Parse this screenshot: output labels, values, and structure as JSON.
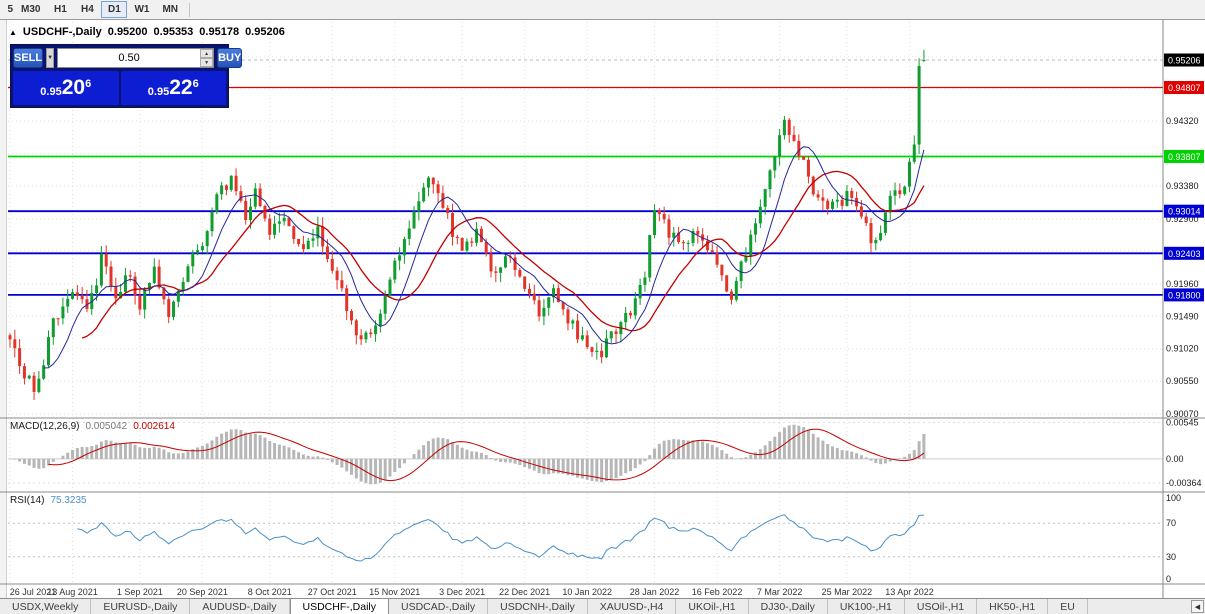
{
  "toolbar": {
    "timeframes": [
      "5",
      "M30",
      "H1",
      "H4",
      "D1",
      "W1",
      "MN"
    ],
    "active": "D1"
  },
  "chart": {
    "symbol_title": "USDCHF-,Daily",
    "ohlc": {
      "open": "0.95200",
      "high": "0.95353",
      "low": "0.95178",
      "close": "0.95206"
    },
    "trade_panel": {
      "sell_label": "SELL",
      "buy_label": "BUY",
      "lot_size": "0.50",
      "bid_small": "0.95",
      "bid_big": "20",
      "bid_sup": "6",
      "ask_small": "0.95",
      "ask_big": "22",
      "ask_sup": "6"
    },
    "price_axis": {
      "current": {
        "label": "0.95206",
        "price": 0.95206
      },
      "levels": [
        {
          "label": "0.94807",
          "price": 0.94807,
          "type": "red"
        },
        {
          "label": "0.93807",
          "price": 0.93807,
          "type": "green"
        },
        {
          "label": "0.93014",
          "price": 0.93014,
          "type": "blue"
        },
        {
          "label": "0.92403",
          "price": 0.92403,
          "type": "blue"
        },
        {
          "label": "0.91800",
          "price": 0.918,
          "type": "blue"
        }
      ],
      "plain": [
        {
          "label": "0.94320",
          "price": 0.9432
        },
        {
          "label": "0.93380",
          "price": 0.9338
        },
        {
          "label": "0.92900",
          "price": 0.929
        },
        {
          "label": "0.91960",
          "price": 0.9196
        },
        {
          "label": "0.91490",
          "price": 0.9149
        },
        {
          "label": "0.91020",
          "price": 0.9102
        },
        {
          "label": "0.90550",
          "price": 0.9055
        },
        {
          "label": "0.90070",
          "price": 0.9007
        }
      ],
      "grid_extra": [
        0.9526,
        0.9479,
        0.9385,
        0.9244
      ]
    },
    "series": {
      "bar_count": 191,
      "anchors": [
        [
          0,
          0.911
        ],
        [
          2,
          0.9078
        ],
        [
          5,
          0.9046
        ],
        [
          7,
          0.9085
        ],
        [
          9,
          0.914
        ],
        [
          12,
          0.9165
        ],
        [
          14,
          0.9185
        ],
        [
          16,
          0.915
        ],
        [
          19,
          0.923
        ],
        [
          22,
          0.9175
        ],
        [
          25,
          0.9215
        ],
        [
          27,
          0.916
        ],
        [
          30,
          0.9215
        ],
        [
          33,
          0.9145
        ],
        [
          37,
          0.9228
        ],
        [
          40,
          0.926
        ],
        [
          43,
          0.9322
        ],
        [
          46,
          0.9345
        ],
        [
          49,
          0.9292
        ],
        [
          51,
          0.9333
        ],
        [
          54,
          0.9272
        ],
        [
          57,
          0.93
        ],
        [
          61,
          0.9242
        ],
        [
          64,
          0.9278
        ],
        [
          67,
          0.9216
        ],
        [
          70,
          0.9162
        ],
        [
          73,
          0.9112
        ],
        [
          76,
          0.914
        ],
        [
          79,
          0.9198
        ],
        [
          81,
          0.9243
        ],
        [
          85,
          0.9315
        ],
        [
          87,
          0.9358
        ],
        [
          90,
          0.931
        ],
        [
          92,
          0.9272
        ],
        [
          94,
          0.9246
        ],
        [
          97,
          0.9272
        ],
        [
          100,
          0.9218
        ],
        [
          104,
          0.923
        ],
        [
          107,
          0.9188
        ],
        [
          110,
          0.9158
        ],
        [
          113,
          0.9186
        ],
        [
          116,
          0.9145
        ],
        [
          119,
          0.9115
        ],
        [
          123,
          0.9098
        ],
        [
          126,
          0.9128
        ],
        [
          129,
          0.9158
        ],
        [
          132,
          0.9215
        ],
        [
          134,
          0.9308
        ],
        [
          137,
          0.9268
        ],
        [
          140,
          0.9245
        ],
        [
          143,
          0.9272
        ],
        [
          146,
          0.9232
        ],
        [
          150,
          0.918
        ],
        [
          153,
          0.9244
        ],
        [
          156,
          0.9302
        ],
        [
          159,
          0.9388
        ],
        [
          161,
          0.9432
        ],
        [
          164,
          0.9388
        ],
        [
          167,
          0.933
        ],
        [
          170,
          0.93
        ],
        [
          174,
          0.9324
        ],
        [
          177,
          0.9288
        ],
        [
          180,
          0.9252
        ],
        [
          183,
          0.9314
        ],
        [
          186,
          0.9338
        ],
        [
          188,
          0.9398
        ],
        [
          189,
          0.9512
        ],
        [
          190,
          0.95206
        ]
      ],
      "last_bar": {
        "o": 0.952,
        "h": 0.95353,
        "l": 0.95178,
        "c": 0.95206
      }
    },
    "dates": {
      "labels": [
        "26 Jul 2021",
        "13 Aug 2021",
        "1 Sep 2021",
        "20 Sep 2021",
        "8 Oct 2021",
        "27 Oct 2021",
        "15 Nov 2021",
        "3 Dec 2021",
        "22 Dec 2021",
        "10 Jan 2022",
        "28 Jan 2022",
        "16 Feb 2022",
        "7 Mar 2022",
        "25 Mar 2022",
        "13 Apr 2022"
      ],
      "bars": [
        0,
        13,
        27,
        40,
        54,
        67,
        80,
        94,
        107,
        120,
        134,
        147,
        160,
        174,
        187
      ]
    },
    "colors": {
      "up": "#0f9d2f",
      "down": "#e23428",
      "ma_fast": "#26269c",
      "ma_slow": "#c40000",
      "level_red": "#e00000",
      "level_green": "#00d300",
      "level_blue": "#0000d0",
      "badge_black": "#000000",
      "grid": "#e2e2e2",
      "macd_hist": "#b6b6b6",
      "macd_signal": "#c40000",
      "rsi_line": "#4a90c8"
    }
  },
  "macd": {
    "name": "MACD(12,26,9)",
    "value_main": "0.005042",
    "value_signal": "0.002614",
    "axis_top": "0.00545",
    "axis_zero": "0.00",
    "axis_bottom": "-0.00364"
  },
  "rsi": {
    "name": "RSI(14)",
    "value": "75.3235",
    "axis": [
      "100",
      "70",
      "30",
      "0"
    ],
    "levels": [
      70,
      30
    ]
  },
  "tabs": {
    "items": [
      "USDX,Weekly",
      "EURUSD-,Daily",
      "AUDUSD-,Daily",
      "USDCHF-,Daily",
      "USDCAD-,Daily",
      "USDCNH-,Daily",
      "XAUUSD-,H4",
      "UKOil-,H1",
      "DJ30-,Daily",
      "UK100-,H1",
      "USOil-,H1",
      "HK50-,H1",
      "EU"
    ],
    "active": "USDCHF-,Daily",
    "scroll_left_icon": "◀"
  }
}
